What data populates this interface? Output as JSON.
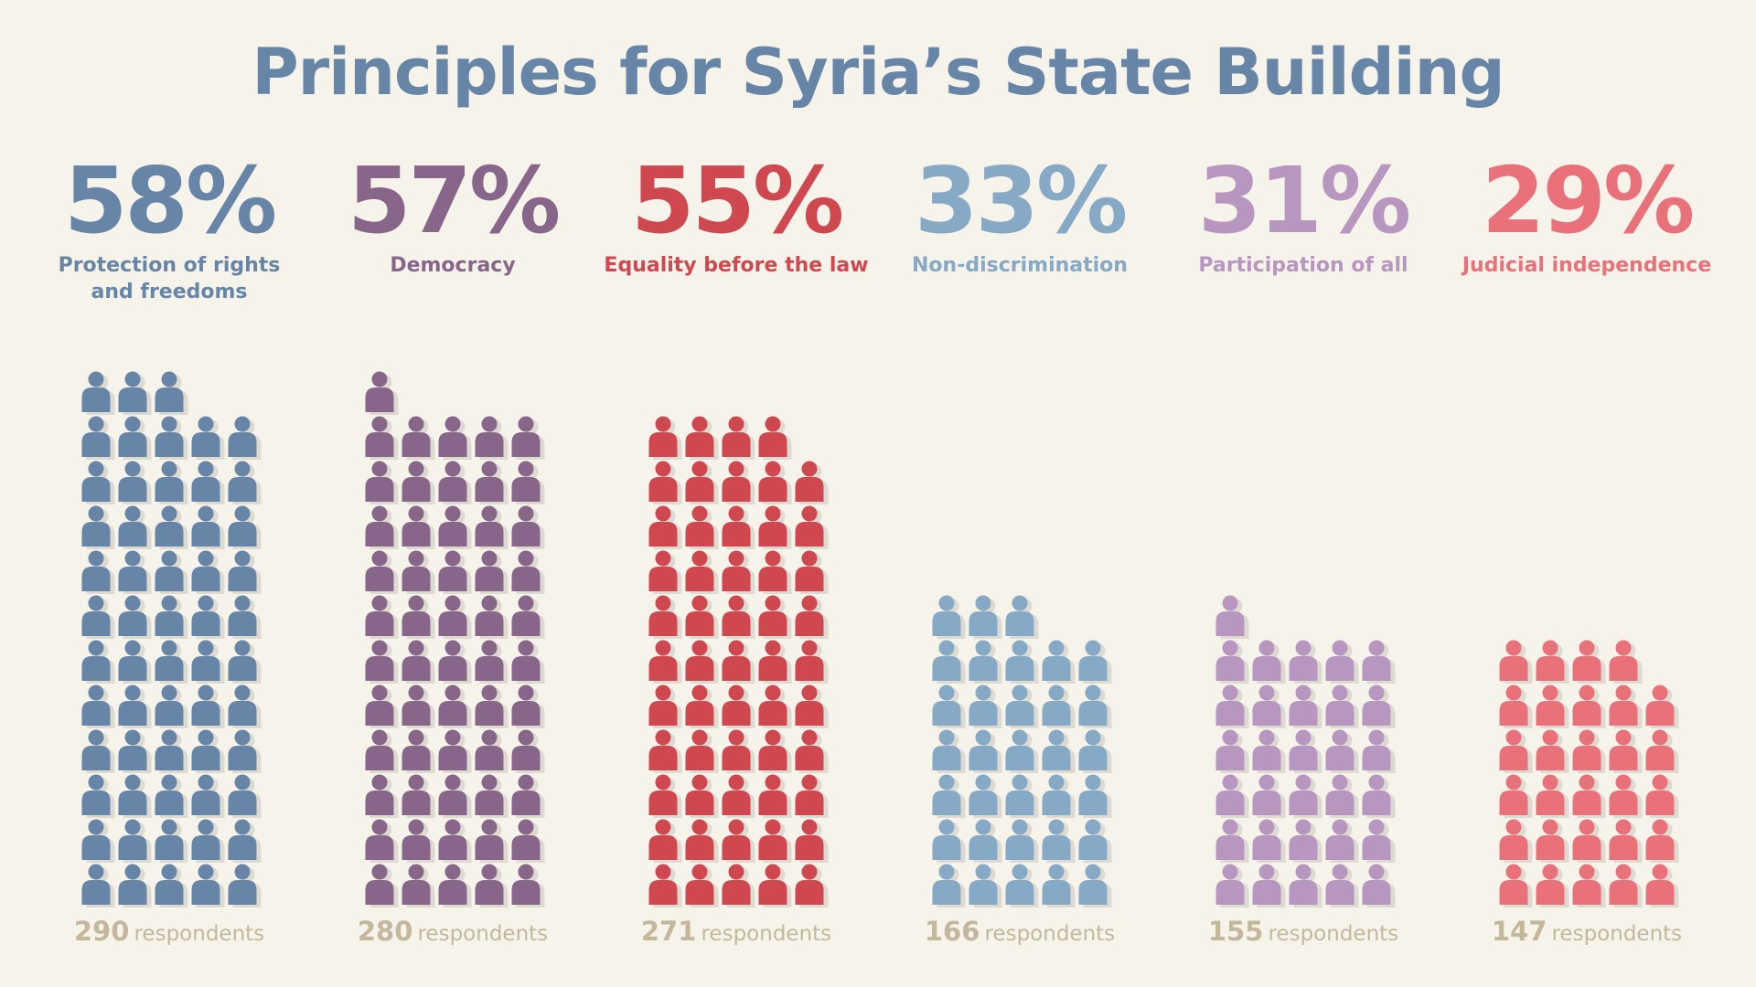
{
  "title": "Principles for Syria’s State Building",
  "colors": {
    "background": "#f6f3ea",
    "title": "#6785a7",
    "respondents_text": "#c3b79c"
  },
  "respondents_word": "respondents",
  "chart_data": {
    "type": "bar",
    "title": "Principles for Syria’s State Building",
    "categories": [
      "Protection of rights\nand freedoms",
      "Democracy",
      "Equality before the law",
      "Non-discrimination",
      "Participation of all",
      "Judicial independence"
    ],
    "percent_labels": [
      "58%",
      "57%",
      "55%",
      "33%",
      "31%",
      "29%"
    ],
    "values": [
      58,
      57,
      55,
      33,
      31,
      29
    ],
    "respondents": [
      290,
      280,
      271,
      166,
      155,
      147
    ],
    "icon_counts": [
      58,
      56,
      54,
      33,
      31,
      29
    ],
    "colors": [
      "#6785a7",
      "#876689",
      "#d0484f",
      "#86a9c5",
      "#b797bf",
      "#e9727a"
    ]
  }
}
